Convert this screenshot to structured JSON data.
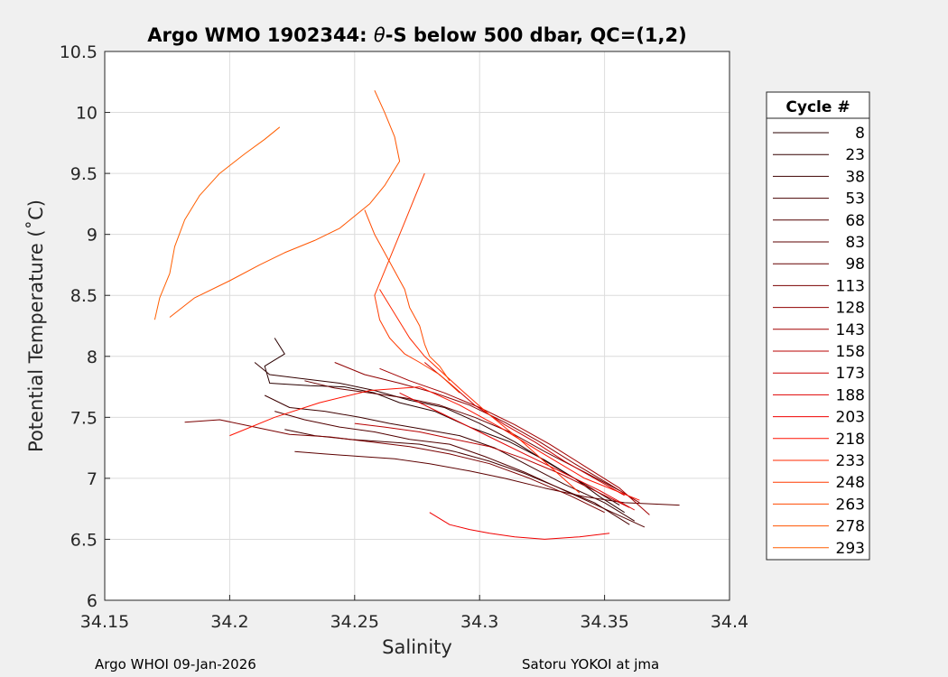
{
  "chart_data": {
    "type": "line",
    "title_prefix": "Argo WMO 1902344: ",
    "title_symbol": "θ",
    "title_suffix": "-S below 500 dbar,  QC=(1,2)",
    "xlabel": "Salinity",
    "ylabel": "Potential Temperature (˚C)",
    "xlim": [
      34.15,
      34.4
    ],
    "ylim": [
      6,
      10.5
    ],
    "xticks": [
      "34.15",
      "34.2",
      "34.25",
      "34.3",
      "34.35",
      "34.4"
    ],
    "yticks": [
      "6",
      "6.5",
      "7",
      "7.5",
      "8",
      "8.5",
      "9",
      "9.5",
      "10",
      "10.5"
    ],
    "grid": true,
    "legend_title": "Cycle #",
    "legend_position": "outside-right",
    "series": [
      {
        "name": "8",
        "color": "#2a0000",
        "x": [
          34.218,
          34.222,
          34.214,
          34.216,
          34.232,
          34.246,
          34.258,
          34.268,
          34.282,
          34.296,
          34.312,
          34.326,
          34.338,
          34.348,
          34.358
        ],
        "y": [
          8.15,
          8.02,
          7.92,
          7.78,
          7.76,
          7.75,
          7.7,
          7.62,
          7.55,
          7.42,
          7.3,
          7.15,
          7.0,
          6.85,
          6.72
        ]
      },
      {
        "name": "23",
        "color": "#330000",
        "x": [
          34.21,
          34.216,
          34.228,
          34.244,
          34.258,
          34.272,
          34.286,
          34.3,
          34.314,
          34.328,
          34.342,
          34.356
        ],
        "y": [
          7.95,
          7.85,
          7.82,
          7.78,
          7.72,
          7.64,
          7.58,
          7.45,
          7.3,
          7.12,
          6.95,
          6.78
        ]
      },
      {
        "name": "38",
        "color": "#3d0000",
        "x": [
          34.214,
          34.224,
          34.238,
          34.252,
          34.264,
          34.278,
          34.292,
          34.306,
          34.32,
          34.334,
          34.35,
          34.362
        ],
        "y": [
          7.68,
          7.58,
          7.55,
          7.5,
          7.45,
          7.4,
          7.35,
          7.25,
          7.1,
          6.95,
          6.8,
          6.65
        ]
      },
      {
        "name": "53",
        "color": "#470000",
        "x": [
          34.222,
          34.234,
          34.248,
          34.262,
          34.276,
          34.29,
          34.304,
          34.318,
          34.332,
          34.346,
          34.36
        ],
        "y": [
          7.4,
          7.35,
          7.32,
          7.3,
          7.28,
          7.22,
          7.14,
          7.04,
          6.92,
          6.8,
          6.62
        ]
      },
      {
        "name": "68",
        "color": "#520000",
        "x": [
          34.218,
          34.23,
          34.244,
          34.258,
          34.272,
          34.288,
          34.302,
          34.318,
          34.334,
          34.35,
          34.366
        ],
        "y": [
          7.55,
          7.48,
          7.42,
          7.38,
          7.32,
          7.28,
          7.18,
          7.05,
          6.9,
          6.75,
          6.6
        ]
      },
      {
        "name": "83",
        "color": "#5c0000",
        "x": [
          34.226,
          34.238,
          34.252,
          34.266,
          34.28,
          34.296,
          34.31,
          34.326,
          34.342,
          34.358,
          34.38
        ],
        "y": [
          7.22,
          7.2,
          7.18,
          7.16,
          7.12,
          7.06,
          7.0,
          6.92,
          6.85,
          6.8,
          6.78
        ]
      },
      {
        "name": "98",
        "color": "#660000",
        "x": [
          34.23,
          34.242,
          34.256,
          34.27,
          34.284,
          34.298,
          34.312,
          34.326,
          34.342,
          34.356
        ],
        "y": [
          7.8,
          7.74,
          7.7,
          7.66,
          7.6,
          7.5,
          7.38,
          7.22,
          7.05,
          6.9
        ]
      },
      {
        "name": "113",
        "color": "#7a0000",
        "x": [
          34.182,
          34.196,
          34.21,
          34.224,
          34.24,
          34.256,
          34.272,
          34.288,
          34.304,
          34.32,
          34.336,
          34.35
        ],
        "y": [
          7.46,
          7.48,
          7.42,
          7.36,
          7.34,
          7.3,
          7.26,
          7.2,
          7.12,
          7.0,
          6.86,
          6.72
        ]
      },
      {
        "name": "128",
        "color": "#8f0000",
        "x": [
          34.242,
          34.254,
          34.268,
          34.282,
          34.296,
          34.31,
          34.324,
          34.338,
          34.352,
          34.364
        ],
        "y": [
          7.95,
          7.85,
          7.78,
          7.7,
          7.6,
          7.46,
          7.3,
          7.12,
          6.95,
          6.8
        ]
      },
      {
        "name": "143",
        "color": "#a30000",
        "x": [
          34.26,
          34.272,
          34.286,
          34.3,
          34.314,
          34.328,
          34.342,
          34.356,
          34.368
        ],
        "y": [
          7.9,
          7.8,
          7.7,
          7.58,
          7.44,
          7.28,
          7.1,
          6.92,
          6.7
        ]
      },
      {
        "name": "158",
        "color": "#b80000",
        "x": [
          34.25,
          34.262,
          34.276,
          34.29,
          34.304,
          34.318,
          34.332,
          34.346,
          34.36
        ],
        "y": [
          7.45,
          7.42,
          7.38,
          7.32,
          7.26,
          7.16,
          7.04,
          6.9,
          6.76
        ]
      },
      {
        "name": "173",
        "color": "#cc0000",
        "x": [
          34.278,
          34.288,
          34.298,
          34.31,
          34.322,
          34.334,
          34.346,
          34.358
        ],
        "y": [
          7.95,
          7.78,
          7.6,
          7.44,
          7.3,
          7.14,
          7.0,
          6.86
        ]
      },
      {
        "name": "188",
        "color": "#e00000",
        "x": [
          34.268,
          34.28,
          34.292,
          34.304,
          34.318,
          34.332,
          34.348,
          34.362
        ],
        "y": [
          7.7,
          7.58,
          7.46,
          7.34,
          7.2,
          7.06,
          6.9,
          6.74
        ]
      },
      {
        "name": "203",
        "color": "#f00000",
        "x": [
          34.28,
          34.288,
          34.296,
          34.304,
          34.314,
          34.326,
          34.34,
          34.352
        ],
        "y": [
          6.72,
          6.62,
          6.58,
          6.55,
          6.52,
          6.5,
          6.52,
          6.55
        ]
      },
      {
        "name": "218",
        "color": "#ff1100",
        "x": [
          34.2,
          34.218,
          34.236,
          34.256,
          34.276,
          34.292,
          34.308,
          34.324,
          34.342,
          34.364
        ],
        "y": [
          7.35,
          7.5,
          7.62,
          7.72,
          7.75,
          7.6,
          7.42,
          7.22,
          7.0,
          6.82
        ]
      },
      {
        "name": "233",
        "color": "#ff2800",
        "x": [
          34.26,
          34.266,
          34.272,
          34.278,
          34.286,
          34.294,
          34.304,
          34.316,
          34.328,
          34.34
        ],
        "y": [
          8.55,
          8.35,
          8.15,
          8.0,
          7.85,
          7.7,
          7.52,
          7.32,
          7.1,
          6.88
        ]
      },
      {
        "name": "248",
        "color": "#ff3a00",
        "x": [
          34.278,
          34.274,
          34.27,
          34.266,
          34.262,
          34.258,
          34.26,
          34.264,
          34.27,
          34.276,
          34.284,
          34.292
        ],
        "y": [
          9.5,
          9.3,
          9.1,
          8.9,
          8.7,
          8.5,
          8.3,
          8.15,
          8.02,
          7.95,
          7.85,
          7.7
        ]
      },
      {
        "name": "263",
        "color": "#ff4a00",
        "x": [
          34.254,
          34.258,
          34.262,
          34.266,
          34.27,
          34.272,
          34.276,
          34.278,
          34.28,
          34.284,
          34.288
        ],
        "y": [
          9.2,
          9.0,
          8.85,
          8.7,
          8.55,
          8.4,
          8.25,
          8.1,
          8.0,
          7.92,
          7.8
        ]
      },
      {
        "name": "278",
        "color": "#ff5500",
        "x": [
          34.258,
          34.262,
          34.266,
          34.268,
          34.262,
          34.256,
          34.25,
          34.244,
          34.234,
          34.222,
          34.212,
          34.2,
          34.186,
          34.176
        ],
        "y": [
          10.18,
          10.0,
          9.8,
          9.6,
          9.4,
          9.25,
          9.15,
          9.05,
          8.95,
          8.85,
          8.75,
          8.62,
          8.48,
          8.32
        ]
      },
      {
        "name": "293",
        "color": "#ff5f00",
        "x": [
          34.22,
          34.214,
          34.206,
          34.196,
          34.188,
          34.182,
          34.178,
          34.176,
          34.172,
          34.17
        ],
        "y": [
          9.88,
          9.78,
          9.66,
          9.5,
          9.32,
          9.12,
          8.9,
          8.68,
          8.48,
          8.3
        ]
      }
    ]
  },
  "footer": {
    "left": "Argo WHOI 09-Jan-2026",
    "right": "Satoru YOKOI at jma"
  }
}
